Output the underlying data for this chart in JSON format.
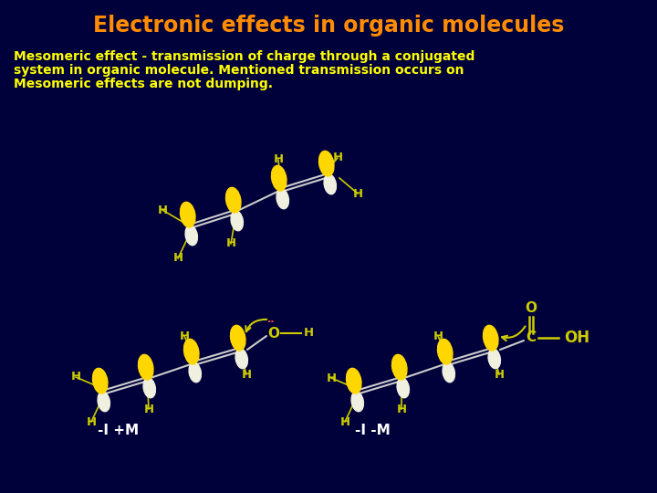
{
  "title": "Electronic effects in organic molecules",
  "title_color": "#FF8C00",
  "bg_color": "#00003A",
  "subtitle_line1": "Mesomeric effect - transmission of charge through a conjugated",
  "subtitle_line2": "system in organic molecule. Mentioned transmission occurs on",
  "subtitle_line3": "Mesomeric effects are not dumping.",
  "subtitle_color": "#FFFF00",
  "label_color": "#CCCC00",
  "white_color": "#FFFFFF",
  "orbital_yellow": "#FFD700",
  "orbital_white": "#F0F0E0"
}
